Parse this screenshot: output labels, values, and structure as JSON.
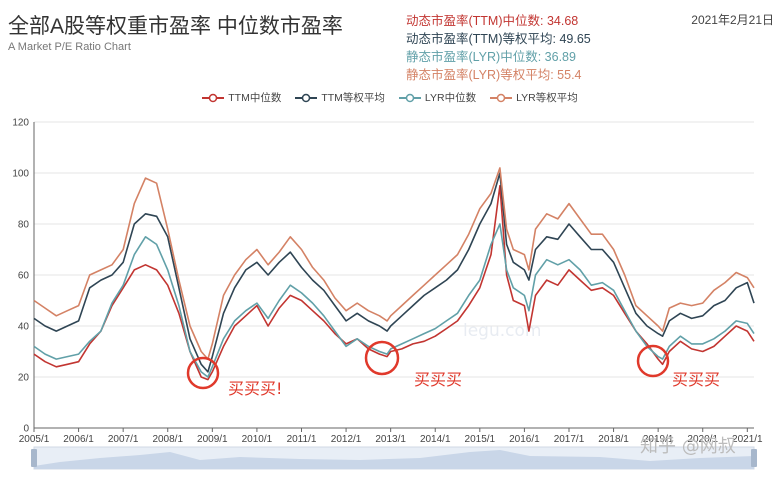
{
  "header": {
    "title": "全部A股等权重市盈率 中位数市盈率",
    "subtitle": "A Market P/E Ratio Chart",
    "date": "2021年2月21日"
  },
  "stats": [
    {
      "text": "动态市盈率(TTM)中位数: 34.68",
      "color": "#c23531"
    },
    {
      "text": "动态市盈率(TTM)等权平均: 49.65",
      "color": "#2f4554"
    },
    {
      "text": "静态市盈率(LYR)中位数: 36.89",
      "color": "#61a0a8"
    },
    {
      "text": "静态市盈率(LYR)等权平均: 55.4",
      "color": "#d48265"
    }
  ],
  "annotations": [
    "买买买!",
    "买买买",
    "买买买"
  ],
  "watermark": "知乎 @网叔",
  "watermark_faint": "legu.com",
  "chart_data": {
    "type": "line",
    "title": "全部A股等权重市盈率 中位数市盈率",
    "legend_position": "top-center",
    "grid": true,
    "ylim": [
      0,
      120
    ],
    "yticks": [
      0,
      20,
      40,
      60,
      80,
      100,
      120
    ],
    "xlim": [
      2005.0,
      2021.15
    ],
    "xticks": [
      "2005/1",
      "2006/1",
      "2007/1",
      "2008/1",
      "2009/1",
      "2010/1",
      "2011/1",
      "2012/1",
      "2013/1",
      "2014/1",
      "2015/1",
      "2016/1",
      "2017/1",
      "2018/1",
      "2019/1",
      "2020/1",
      "2021/1"
    ],
    "x": [
      2005.0,
      2005.25,
      2005.5,
      2005.75,
      2006.0,
      2006.25,
      2006.5,
      2006.75,
      2007.0,
      2007.25,
      2007.5,
      2007.75,
      2008.0,
      2008.25,
      2008.5,
      2008.75,
      2008.9,
      2009.0,
      2009.25,
      2009.5,
      2009.75,
      2010.0,
      2010.25,
      2010.5,
      2010.75,
      2011.0,
      2011.25,
      2011.5,
      2011.75,
      2012.0,
      2012.25,
      2012.5,
      2012.75,
      2012.92,
      2013.0,
      2013.25,
      2013.5,
      2013.75,
      2014.0,
      2014.25,
      2014.5,
      2014.75,
      2015.0,
      2015.25,
      2015.45,
      2015.6,
      2015.75,
      2016.0,
      2016.1,
      2016.25,
      2016.5,
      2016.75,
      2017.0,
      2017.25,
      2017.5,
      2017.75,
      2018.0,
      2018.25,
      2018.5,
      2018.75,
      2019.0,
      2019.1,
      2019.25,
      2019.5,
      2019.75,
      2020.0,
      2020.25,
      2020.5,
      2020.75,
      2021.0,
      2021.15
    ],
    "series": [
      {
        "name": "TTM中位数",
        "color": "#c23531",
        "values": [
          29,
          26,
          24,
          25,
          26,
          33,
          38,
          48,
          55,
          62,
          64,
          62,
          56,
          45,
          30,
          20,
          19,
          22,
          32,
          40,
          44,
          48,
          40,
          47,
          52,
          50,
          46,
          42,
          37,
          33,
          35,
          31,
          29,
          28,
          30,
          31,
          33,
          34,
          36,
          39,
          42,
          48,
          55,
          68,
          95,
          60,
          50,
          48,
          38,
          52,
          58,
          56,
          62,
          58,
          54,
          55,
          52,
          45,
          38,
          33,
          27,
          25,
          30,
          34,
          31,
          30,
          32,
          36,
          40,
          38,
          34
        ]
      },
      {
        "name": "TTM等权平均",
        "color": "#2f4554",
        "values": [
          43,
          40,
          38,
          40,
          42,
          55,
          58,
          60,
          65,
          80,
          84,
          83,
          75,
          55,
          35,
          25,
          22,
          28,
          45,
          55,
          62,
          65,
          60,
          65,
          69,
          63,
          58,
          54,
          48,
          42,
          45,
          42,
          40,
          38,
          40,
          44,
          48,
          52,
          55,
          58,
          62,
          70,
          80,
          88,
          100,
          72,
          65,
          62,
          58,
          70,
          75,
          74,
          80,
          75,
          70,
          70,
          65,
          55,
          45,
          40,
          37,
          36,
          42,
          45,
          43,
          44,
          48,
          50,
          55,
          57,
          49
        ]
      },
      {
        "name": "LYR中位数",
        "color": "#61a0a8",
        "values": [
          32,
          29,
          27,
          28,
          29,
          34,
          38,
          49,
          56,
          68,
          75,
          72,
          62,
          48,
          30,
          22,
          20,
          24,
          35,
          42,
          46,
          49,
          43,
          50,
          56,
          53,
          49,
          44,
          38,
          32,
          35,
          32,
          30,
          29,
          31,
          33,
          35,
          37,
          39,
          42,
          45,
          52,
          58,
          72,
          80,
          62,
          55,
          52,
          46,
          60,
          66,
          64,
          66,
          62,
          56,
          57,
          54,
          46,
          38,
          32,
          28,
          27,
          32,
          36,
          33,
          33,
          35,
          38,
          42,
          41,
          37
        ]
      },
      {
        "name": "LYR等权平均",
        "color": "#d48265",
        "values": [
          50,
          47,
          44,
          46,
          48,
          60,
          62,
          64,
          70,
          88,
          98,
          96,
          78,
          58,
          40,
          30,
          27,
          33,
          52,
          60,
          66,
          70,
          64,
          69,
          75,
          70,
          63,
          58,
          51,
          46,
          49,
          46,
          44,
          42,
          44,
          48,
          52,
          56,
          60,
          64,
          68,
          76,
          86,
          92,
          102,
          78,
          70,
          68,
          62,
          78,
          84,
          82,
          88,
          82,
          76,
          76,
          70,
          60,
          48,
          44,
          40,
          38,
          47,
          49,
          48,
          49,
          54,
          57,
          61,
          59,
          55
        ]
      }
    ]
  }
}
